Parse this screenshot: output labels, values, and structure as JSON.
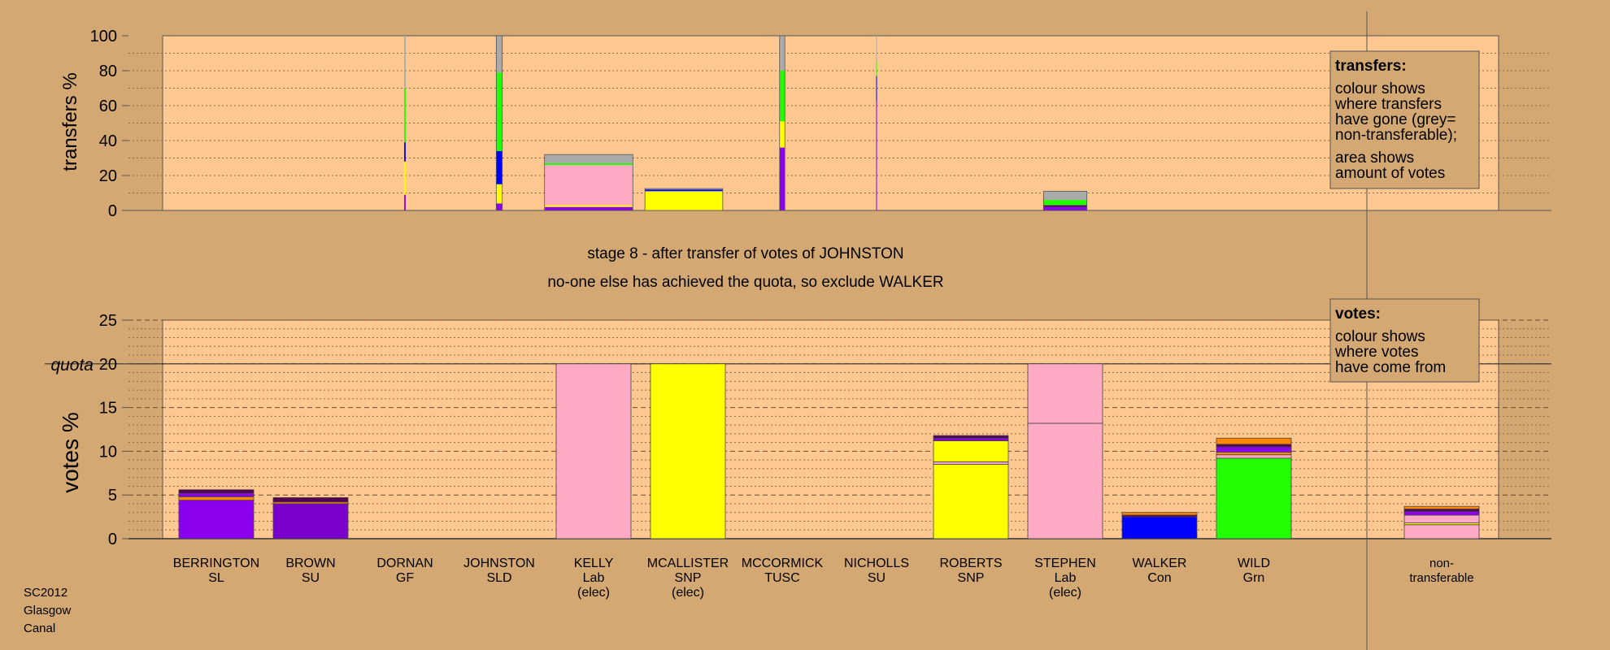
{
  "colors": {
    "background": "#d4a872",
    "plot_bg": "#ffc890",
    "SL": "#8b00ee",
    "SU": "#7a00cc",
    "GF": "#ff8800",
    "SLD": "#ff8800",
    "Lab": "#ffaac4",
    "SNP": "#ffff00",
    "TUSC": "#cc0000",
    "Con": "#0000ff",
    "Grn": "#22ff00",
    "orange": "#ff8800",
    "dark": "#550055",
    "nontransferable": "#aaaaaa"
  },
  "stage_text": "stage 8 - after transfer of votes of JOHNSTON",
  "status_text": "no-one else has achieved the quota, so exclude WALKER",
  "corner": {
    "line1": "SC2012",
    "line2": "Glasgow",
    "line3": "Canal"
  },
  "legend_transfers": {
    "title": "transfers:",
    "line1": "colour shows",
    "line2": "where transfers",
    "line3": "have gone (grey=",
    "line4": "non-transferable);",
    "line5": "area shows",
    "line6": "amount of votes"
  },
  "legend_votes": {
    "title": "votes:",
    "line1": "colour shows",
    "line2": "where votes",
    "line3": "have come from"
  },
  "chart_data": [
    {
      "type": "bar",
      "ylabel": "transfers %",
      "ylim": [
        0,
        100
      ],
      "yticks": [
        0,
        20,
        40,
        60,
        80,
        100
      ],
      "bars": [
        {
          "index": 2,
          "width": 0.02,
          "segments": [
            {
              "party": "SL",
              "from": 0,
              "to": 9
            },
            {
              "party": "SNP",
              "from": 9,
              "to": 28
            },
            {
              "party": "Con",
              "from": 28,
              "to": 39
            },
            {
              "party": "Grn",
              "from": 39,
              "to": 70
            },
            {
              "party": "nontransferable",
              "from": 70,
              "to": 100
            }
          ]
        },
        {
          "index": 3,
          "width": 0.08,
          "segments": [
            {
              "party": "SL",
              "from": 0,
              "to": 4
            },
            {
              "party": "SNP",
              "from": 4,
              "to": 15
            },
            {
              "party": "Con",
              "from": 15,
              "to": 34
            },
            {
              "party": "Grn",
              "from": 34,
              "to": 79
            },
            {
              "party": "nontransferable",
              "from": 79,
              "to": 100
            }
          ]
        },
        {
          "index": 4,
          "width": 1.18,
          "segments": [
            {
              "party": "SL",
              "from": 0,
              "to": 2
            },
            {
              "party": "SNP",
              "from": 2,
              "to": 3
            },
            {
              "party": "Lab",
              "from": 3,
              "to": 26
            },
            {
              "party": "Grn",
              "from": 26,
              "to": 27
            },
            {
              "party": "nontransferable",
              "from": 27,
              "to": 32
            }
          ]
        },
        {
          "index": 5,
          "width": 1.04,
          "segments": [
            {
              "party": "SNP",
              "from": 0,
              "to": 11
            },
            {
              "party": "Con",
              "from": 11,
              "to": 12
            },
            {
              "party": "nontransferable",
              "from": 12,
              "to": 12.5
            }
          ]
        },
        {
          "index": 6,
          "width": 0.07,
          "segments": [
            {
              "party": "SL",
              "from": 0,
              "to": 36
            },
            {
              "party": "SNP",
              "from": 36,
              "to": 51
            },
            {
              "party": "Grn",
              "from": 51,
              "to": 80
            },
            {
              "party": "nontransferable",
              "from": 80,
              "to": 100
            }
          ]
        },
        {
          "index": 7,
          "width": 0.01,
          "segments": [
            {
              "party": "SL",
              "from": 0,
              "to": 62
            },
            {
              "party": "Con",
              "from": 62,
              "to": 77
            },
            {
              "party": "Grn",
              "from": 77,
              "to": 85
            },
            {
              "party": "nontransferable",
              "from": 85,
              "to": 100
            }
          ]
        },
        {
          "index": 9,
          "width": 0.58,
          "segments": [
            {
              "party": "SL",
              "from": 0,
              "to": 2
            },
            {
              "party": "dark",
              "from": 2,
              "to": 3
            },
            {
              "party": "Grn",
              "from": 3,
              "to": 6
            },
            {
              "party": "nontransferable",
              "from": 6,
              "to": 11
            }
          ]
        }
      ]
    },
    {
      "type": "bar",
      "ylabel": "votes %",
      "ylim": [
        0,
        25
      ],
      "yticks": [
        0,
        5,
        10,
        15,
        20,
        25
      ],
      "quota": 20,
      "quota_label": "quota",
      "candidates": [
        {
          "name": "BERRINGTON",
          "party": "SL",
          "note": "",
          "segments": [
            {
              "party": "SL",
              "from": 0,
              "to": 4.4
            },
            {
              "party": "orange",
              "from": 4.4,
              "to": 4.8
            },
            {
              "party": "SL",
              "from": 4.8,
              "to": 5.2
            },
            {
              "party": "dark",
              "from": 5.2,
              "to": 5.6
            }
          ]
        },
        {
          "name": "BROWN",
          "party": "SU",
          "note": "",
          "segments": [
            {
              "party": "SU",
              "from": 0,
              "to": 4.0
            },
            {
              "party": "orange",
              "from": 4.0,
              "to": 4.2
            },
            {
              "party": "dark",
              "from": 4.2,
              "to": 4.7
            }
          ]
        },
        {
          "name": "DORNAN",
          "party": "GF",
          "note": "",
          "segments": []
        },
        {
          "name": "JOHNSTON",
          "party": "SLD",
          "note": "",
          "segments": []
        },
        {
          "name": "KELLY",
          "party": "Lab",
          "note": "(elec)",
          "segments": [
            {
              "party": "Lab",
              "from": 0,
              "to": 20
            }
          ]
        },
        {
          "name": "MCALLISTER",
          "party": "SNP",
          "note": "(elec)",
          "segments": [
            {
              "party": "SNP",
              "from": 0,
              "to": 20
            }
          ]
        },
        {
          "name": "MCCORMICK",
          "party": "TUSC",
          "note": "",
          "segments": []
        },
        {
          "name": "NICHOLLS",
          "party": "SU",
          "note": "",
          "segments": []
        },
        {
          "name": "ROBERTS",
          "party": "SNP",
          "note": "",
          "segments": [
            {
              "party": "SNP",
              "from": 0,
              "to": 8.5
            },
            {
              "party": "Lab",
              "from": 8.5,
              "to": 8.8
            },
            {
              "party": "SNP",
              "from": 8.8,
              "to": 11.2
            },
            {
              "party": "SL",
              "from": 11.2,
              "to": 11.5
            },
            {
              "party": "dark",
              "from": 11.5,
              "to": 11.8
            }
          ]
        },
        {
          "name": "STEPHEN",
          "party": "Lab",
          "note": "(elec)",
          "segments": [
            {
              "party": "Lab",
              "from": 0,
              "to": 13.2
            },
            {
              "party": "Lab",
              "from": 13.2,
              "to": 20
            }
          ]
        },
        {
          "name": "WALKER",
          "party": "Con",
          "note": "",
          "segments": [
            {
              "party": "Con",
              "from": 0,
              "to": 2.5
            },
            {
              "party": "dark",
              "from": 2.5,
              "to": 2.7
            },
            {
              "party": "orange",
              "from": 2.7,
              "to": 3.0
            }
          ]
        },
        {
          "name": "WILD",
          "party": "Grn",
          "note": "",
          "segments": [
            {
              "party": "Grn",
              "from": 0,
              "to": 9.2
            },
            {
              "party": "Lab",
              "from": 9.2,
              "to": 9.6
            },
            {
              "party": "orange",
              "from": 9.6,
              "to": 9.9
            },
            {
              "party": "SL",
              "from": 9.9,
              "to": 10.5
            },
            {
              "party": "dark",
              "from": 10.5,
              "to": 10.8
            },
            {
              "party": "orange",
              "from": 10.8,
              "to": 11.5
            }
          ]
        },
        {
          "name": "non-",
          "party": "transferable",
          "note": "",
          "nontransferable": true,
          "segments": [
            {
              "party": "Lab",
              "from": 0,
              "to": 1.6
            },
            {
              "party": "SNP",
              "from": 1.6,
              "to": 1.8
            },
            {
              "party": "Lab",
              "from": 1.8,
              "to": 2.7
            },
            {
              "party": "SL",
              "from": 2.7,
              "to": 3.1
            },
            {
              "party": "dark",
              "from": 3.1,
              "to": 3.4
            },
            {
              "party": "orange",
              "from": 3.4,
              "to": 3.7
            }
          ]
        }
      ]
    }
  ]
}
